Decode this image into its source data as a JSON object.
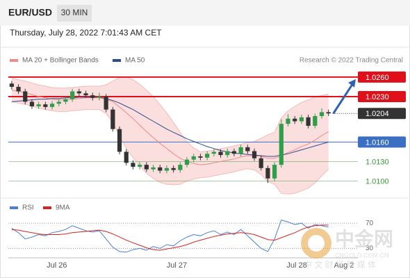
{
  "chart_data": {
    "type": "candlestick",
    "title": "EUR/USD",
    "timeframe": "30 MIN",
    "timestamp": "Thursday, July 28, 2022 7:01:43 AM CET",
    "credit": "Research © 2022 Trading Central",
    "up_color": "#2e9e48",
    "down_color": "#333333",
    "ylim": [
      1.0077,
      1.0277
    ],
    "xlim": [
      -0.5,
      52.6
    ],
    "xticks": [
      {
        "value": 6.7,
        "label": "Jul 26"
      },
      {
        "value": 24.5,
        "label": "Jul 27"
      },
      {
        "value": 42.3,
        "label": "Jul 28"
      },
      {
        "value": 49.3,
        "label": "Aug 2"
      }
    ],
    "candles": [
      [
        1.025,
        1.0254,
        1.0241,
        1.0245
      ],
      [
        1.0245,
        1.0249,
        1.0234,
        1.0238
      ],
      [
        1.0238,
        1.0242,
        1.0218,
        1.0222
      ],
      [
        1.0222,
        1.0226,
        1.0211,
        1.0215
      ],
      [
        1.0215,
        1.0222,
        1.0211,
        1.0218
      ],
      [
        1.0218,
        1.0222,
        1.021,
        1.0214
      ],
      [
        1.0214,
        1.0223,
        1.021,
        1.0219
      ],
      [
        1.0219,
        1.0226,
        1.0215,
        1.0222
      ],
      [
        1.0222,
        1.023,
        1.0218,
        1.0226
      ],
      [
        1.0226,
        1.0242,
        1.0222,
        1.0238
      ],
      [
        1.0238,
        1.0242,
        1.0231,
        1.0235
      ],
      [
        1.0235,
        1.0239,
        1.0228,
        1.0232
      ],
      [
        1.0232,
        1.0236,
        1.0224,
        1.0228
      ],
      [
        1.0228,
        1.0236,
        1.0224,
        1.023
      ],
      [
        1.023,
        1.0234,
        1.0206,
        1.021
      ],
      [
        1.021,
        1.0214,
        1.0176,
        1.018
      ],
      [
        1.018,
        1.0184,
        1.0141,
        1.0145
      ],
      [
        1.0145,
        1.0149,
        1.0124,
        1.0128
      ],
      [
        1.0128,
        1.0132,
        1.0118,
        1.0122
      ],
      [
        1.0122,
        1.0129,
        1.0118,
        1.0125
      ],
      [
        1.0125,
        1.0129,
        1.0114,
        1.0118
      ],
      [
        1.0118,
        1.0125,
        1.0114,
        1.0121
      ],
      [
        1.0121,
        1.0125,
        1.0112,
        1.0116
      ],
      [
        1.0116,
        1.0124,
        1.0112,
        1.012
      ],
      [
        1.012,
        1.0124,
        1.0113,
        1.0117
      ],
      [
        1.0117,
        1.0129,
        1.0113,
        1.0125
      ],
      [
        1.0125,
        1.0137,
        1.0121,
        1.0133
      ],
      [
        1.0133,
        1.0142,
        1.0129,
        1.0138
      ],
      [
        1.0138,
        1.0142,
        1.0132,
        1.0136
      ],
      [
        1.0136,
        1.0146,
        1.0132,
        1.0142
      ],
      [
        1.0142,
        1.0149,
        1.0138,
        1.0145
      ],
      [
        1.0145,
        1.0149,
        1.0136,
        1.014
      ],
      [
        1.014,
        1.015,
        1.0136,
        1.0146
      ],
      [
        1.0146,
        1.015,
        1.0138,
        1.0142
      ],
      [
        1.0142,
        1.0156,
        1.0138,
        1.0152
      ],
      [
        1.0152,
        1.0156,
        1.0142,
        1.0146
      ],
      [
        1.0146,
        1.015,
        1.0131,
        1.0135
      ],
      [
        1.0135,
        1.0139,
        1.0116,
        1.012
      ],
      [
        1.012,
        1.0124,
        1.0097,
        1.0104
      ],
      [
        1.0104,
        1.0129,
        1.01,
        1.0125
      ],
      [
        1.0125,
        1.0195,
        1.0121,
        1.0188
      ],
      [
        1.0188,
        1.0203,
        1.0184,
        1.0196
      ],
      [
        1.0196,
        1.02,
        1.0188,
        1.0192
      ],
      [
        1.0192,
        1.0202,
        1.0188,
        1.0198
      ],
      [
        1.0198,
        1.0202,
        1.0181,
        1.0185
      ],
      [
        1.0185,
        1.0204,
        1.0181,
        1.02
      ],
      [
        1.02,
        1.0212,
        1.0196,
        1.0206
      ],
      [
        1.0206,
        1.021,
        1.02,
        1.0204
      ]
    ],
    "series": [
      {
        "name": "MA 20 + Bollinger Bands",
        "color": "#f08a8a",
        "values": [
          1.024,
          1.0238,
          1.0236,
          1.0233,
          1.023,
          1.0228,
          1.0226,
          1.0225,
          1.0225,
          1.0226,
          1.0227,
          1.0228,
          1.0228,
          1.0228,
          1.0226,
          1.0222,
          1.0214,
          1.0205,
          1.0196,
          1.0186,
          1.0176,
          1.0167,
          1.0158,
          1.015,
          1.0142,
          1.0135,
          1.013,
          1.0127,
          1.0125,
          1.0126,
          1.0128,
          1.013,
          1.0132,
          1.0134,
          1.0137,
          1.0139,
          1.0139,
          1.0138,
          1.0135,
          1.0135,
          1.0139,
          1.0144,
          1.0148,
          1.0153,
          1.0157,
          1.0163,
          1.017,
          1.0176
        ],
        "upper": [
          1.0258,
          1.0256,
          1.0254,
          1.0251,
          1.0248,
          1.0246,
          1.0244,
          1.0243,
          1.0243,
          1.0244,
          1.0245,
          1.0246,
          1.0246,
          1.0246,
          1.0248,
          1.0254,
          1.0259,
          1.026,
          1.0256,
          1.0249,
          1.024,
          1.023,
          1.0218,
          1.0205,
          1.019,
          1.0175,
          1.016,
          1.0151,
          1.0145,
          1.0146,
          1.0148,
          1.015,
          1.0152,
          1.0154,
          1.0157,
          1.0159,
          1.0161,
          1.0166,
          1.0171,
          1.0175,
          1.0197,
          1.0208,
          1.0215,
          1.0221,
          1.0225,
          1.0229,
          1.0232,
          1.0234
        ],
        "lower": [
          1.0222,
          1.022,
          1.0218,
          1.0215,
          1.0212,
          1.021,
          1.0208,
          1.0207,
          1.0207,
          1.0208,
          1.0209,
          1.021,
          1.021,
          1.021,
          1.0204,
          1.019,
          1.0169,
          1.015,
          1.0136,
          1.0123,
          1.0112,
          1.0104,
          1.0098,
          1.0095,
          1.0094,
          1.0095,
          1.01,
          1.0103,
          1.0105,
          1.0106,
          1.0108,
          1.011,
          1.0112,
          1.0114,
          1.0117,
          1.0119,
          1.0117,
          1.011,
          1.0099,
          1.0095,
          1.0081,
          1.008,
          1.0081,
          1.0085,
          1.0089,
          1.0097,
          1.0108,
          1.0118
        ]
      },
      {
        "name": "MA 50",
        "color": "#2b4c8c",
        "values": [
          1.0222,
          1.0223,
          1.0224,
          1.0225,
          1.0226,
          1.0226,
          1.0227,
          1.0227,
          1.0228,
          1.0228,
          1.0229,
          1.0229,
          1.0229,
          1.0229,
          1.0227,
          1.0224,
          1.022,
          1.0215,
          1.021,
          1.0204,
          1.0198,
          1.0192,
          1.0186,
          1.018,
          1.0175,
          1.017,
          1.0165,
          1.0161,
          1.0157,
          1.0153,
          1.015,
          1.0147,
          1.0145,
          1.0143,
          1.0142,
          1.0141,
          1.014,
          1.0139,
          1.0138,
          1.0138,
          1.014,
          1.0142,
          1.0145,
          1.0148,
          1.0151,
          1.0154,
          1.0157,
          1.016
        ]
      }
    ],
    "levels": [
      {
        "value": 1.026,
        "label": "1.0260",
        "color": "#e0101a",
        "style": "box",
        "line": "solid"
      },
      {
        "value": 1.023,
        "label": "1.0230",
        "color": "#e0101a",
        "style": "box",
        "line": "solid"
      },
      {
        "value": 1.0204,
        "label": "1.0204",
        "color": "#333333",
        "style": "box",
        "line": "dotted"
      },
      {
        "value": 1.016,
        "label": "1.0160",
        "color": "#3a6fc4",
        "style": "box",
        "line": "solid"
      },
      {
        "value": 1.013,
        "label": "1.0130",
        "color": "#3a9a3a",
        "style": "text",
        "line": "solid"
      },
      {
        "value": 1.01,
        "label": "1.0100",
        "color": "#3a9a3a",
        "style": "text",
        "line": "solid"
      }
    ],
    "rsi": {
      "ylim": [
        15,
        100
      ],
      "yticks": [
        70,
        30
      ],
      "series": [
        {
          "name": "RSI",
          "color": "#4a7fd8",
          "values": [
            62,
            55,
            45,
            48,
            52,
            50,
            55,
            57,
            60,
            66,
            62,
            58,
            56,
            58,
            45,
            32,
            25,
            24,
            28,
            30,
            27,
            33,
            30,
            36,
            34,
            42,
            48,
            52,
            50,
            55,
            58,
            52,
            56,
            52,
            60,
            50,
            40,
            30,
            25,
            45,
            75,
            72,
            68,
            70,
            62,
            68,
            66,
            64
          ]
        },
        {
          "name": "9MA",
          "color": "#d9231f",
          "values": [
            60,
            59,
            57,
            55,
            53,
            52,
            52,
            52,
            53,
            55,
            56,
            57,
            58,
            59,
            57,
            53,
            48,
            43,
            39,
            35,
            31,
            28,
            27,
            29,
            31,
            33,
            36,
            40,
            43,
            46,
            49,
            51,
            53,
            54,
            55,
            54,
            52,
            48,
            44,
            43,
            47,
            51,
            55,
            60,
            64,
            66,
            67,
            67
          ]
        }
      ]
    },
    "watermark": {
      "brand": "中金网",
      "site": "CNGOLD.COM.CN",
      "slogan": "中 文 财 经 新 媒 体"
    }
  }
}
